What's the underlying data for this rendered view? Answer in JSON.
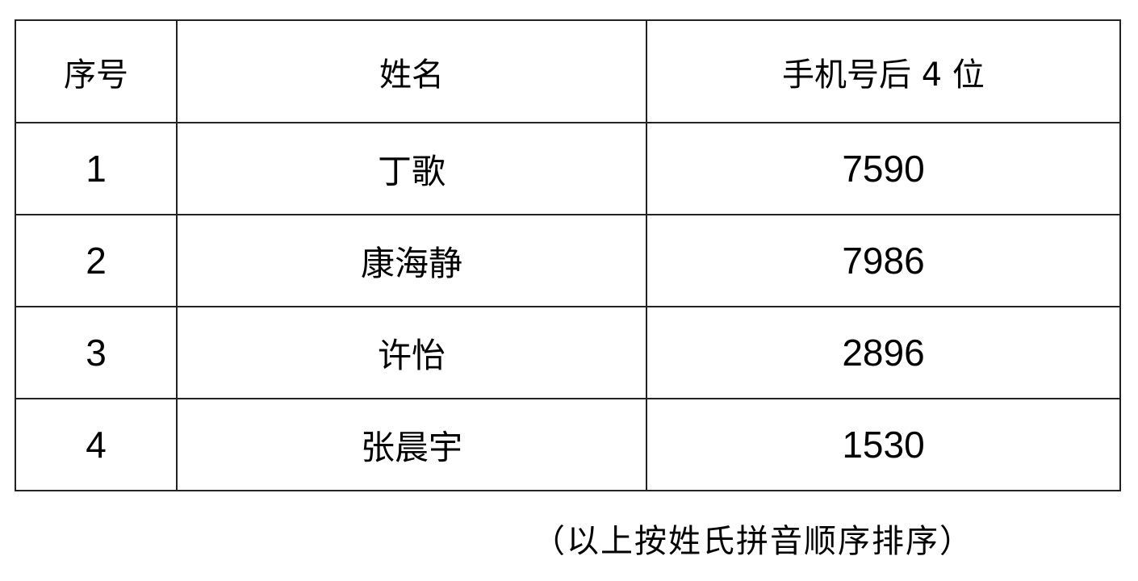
{
  "table": {
    "headers": [
      "序号",
      "姓名",
      "手机号后 4 位"
    ],
    "rows": [
      {
        "index": "1",
        "name": "丁歌",
        "phone_last4": "7590"
      },
      {
        "index": "2",
        "name": "康海静",
        "phone_last4": "7986"
      },
      {
        "index": "3",
        "name": "许怡",
        "phone_last4": "2896"
      },
      {
        "index": "4",
        "name": "张晨宇",
        "phone_last4": "1530"
      }
    ]
  },
  "note": "（以上按姓氏拼音顺序排序）"
}
